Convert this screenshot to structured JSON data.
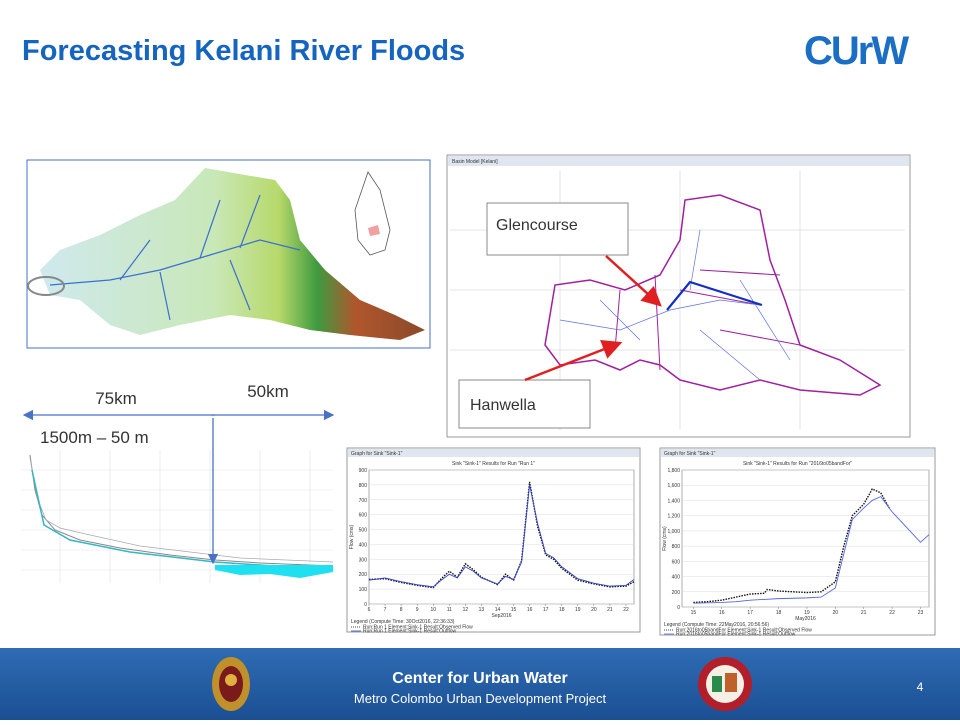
{
  "slide": {
    "title": "Forecasting Kelani River Floods",
    "logo": "CUrW",
    "map_labels": {
      "glencourse": "Glencourse",
      "hanwella": "Hanwella"
    },
    "basin_window_title": "Basin Model [Kelani]",
    "profile": {
      "upper_length": "75km",
      "lower_length": "50km",
      "elevation_range": "1500m – 50 m"
    },
    "graphs": [
      {
        "window_title": "Graph for Sink \"Sink-1\"",
        "title": "Sink \"Sink-1\" Results for Run \"Run 1\"",
        "ylabel": "Flow (cms)",
        "xlabel": "Sep2016",
        "ylim": [
          0,
          900
        ],
        "yticks": [
          0,
          100,
          200,
          300,
          400,
          500,
          600,
          700,
          800,
          900
        ],
        "xlim": [
          6,
          22.5
        ],
        "xticks": [
          6,
          7,
          8,
          9,
          10,
          11,
          12,
          13,
          14,
          15,
          16,
          17,
          18,
          19,
          20,
          21,
          22
        ],
        "legend_title": "Legend (Compute Time: 30Oct2016, 22:36:33)",
        "series": [
          {
            "name": "Run:Run 1 Element:Sink-1 Result:Observed Flow",
            "color": "#111111",
            "dash": true,
            "x": [
              6,
              7,
              8,
              9,
              10,
              10.5,
              11,
              11.5,
              12,
              12.5,
              13,
              14,
              14.5,
              15,
              15.5,
              16,
              16.5,
              17,
              17.5,
              18,
              19,
              20,
              21,
              22,
              22.5
            ],
            "values": [
              165,
              170,
              145,
              125,
              110,
              170,
              220,
              180,
              270,
              230,
              180,
              130,
              200,
              160,
              290,
              820,
              520,
              330,
              300,
              240,
              160,
              135,
              115,
              120,
              150
            ]
          },
          {
            "name": "Run:Run 1 Element:Sink-1 Result:Outflow",
            "color": "#3344cc",
            "dash": false,
            "x": [
              6,
              7,
              8,
              9,
              10,
              10.5,
              11,
              11.5,
              12,
              12.5,
              13,
              14,
              14.5,
              15,
              15.5,
              16,
              16.5,
              17,
              17.5,
              18,
              19,
              20,
              21,
              22,
              22.5
            ],
            "values": [
              160,
              175,
              150,
              130,
              115,
              160,
              200,
              175,
              250,
              220,
              175,
              135,
              185,
              165,
              280,
              800,
              540,
              340,
              310,
              250,
              170,
              140,
              120,
              125,
              165
            ]
          }
        ]
      },
      {
        "window_title": "Graph for Sink \"Sink-1\"",
        "title": "Sink \"Sink-1\" Results for Run \"2016to05bandFor\"",
        "ylabel": "Flow (cms)",
        "xlabel": "May2016",
        "ylim": [
          0,
          1800
        ],
        "yticks": [
          0,
          200,
          400,
          600,
          800,
          {
            "value": 1000,
            "label": "1,000"
          },
          {
            "value": 1200,
            "label": "1,200"
          },
          {
            "value": 1400,
            "label": "1,400"
          },
          {
            "value": 1600,
            "label": "1,600"
          },
          {
            "value": 1800,
            "label": "1,800"
          }
        ],
        "xlim": [
          14.6,
          23.3
        ],
        "xticks": [
          15,
          16,
          17,
          18,
          19,
          20,
          21,
          22,
          23
        ],
        "legend_title": "Legend (Compute Time: 22May2016, 20:56:56)",
        "series": [
          {
            "name": "Run:2016to05bandFor Element:Sink-1 Result:Observed Flow",
            "color": "#111111",
            "dash": true,
            "x": [
              15,
              15.5,
              16,
              16.5,
              17,
              17.5,
              17.6,
              18,
              18.5,
              19,
              19.5,
              20,
              20.3,
              20.6,
              21,
              21.3,
              21.6,
              21.9
            ],
            "values": [
              60,
              70,
              90,
              130,
              170,
              180,
              230,
              210,
              200,
              190,
              200,
              330,
              800,
              1200,
              1350,
              1550,
              1500,
              1300
            ]
          },
          {
            "name": "Run:2016to05bandFor Element:Sink-1 Result:Outflow",
            "color": "#5566dd",
            "dash": false,
            "x": [
              15,
              15.5,
              16,
              16.5,
              17,
              17.5,
              18,
              18.5,
              19,
              19.5,
              20,
              20.3,
              20.6,
              21,
              21.3,
              21.6,
              22,
              22.5,
              23,
              23.3
            ],
            "values": [
              50,
              55,
              60,
              70,
              90,
              100,
              110,
              115,
              120,
              130,
              250,
              700,
              1150,
              1300,
              1400,
              1450,
              1250,
              1050,
              850,
              950
            ]
          }
        ]
      }
    ],
    "footer": {
      "org": "Center for Urban Water",
      "project": "Metro Colombo Urban Development Project",
      "page": "4"
    }
  }
}
